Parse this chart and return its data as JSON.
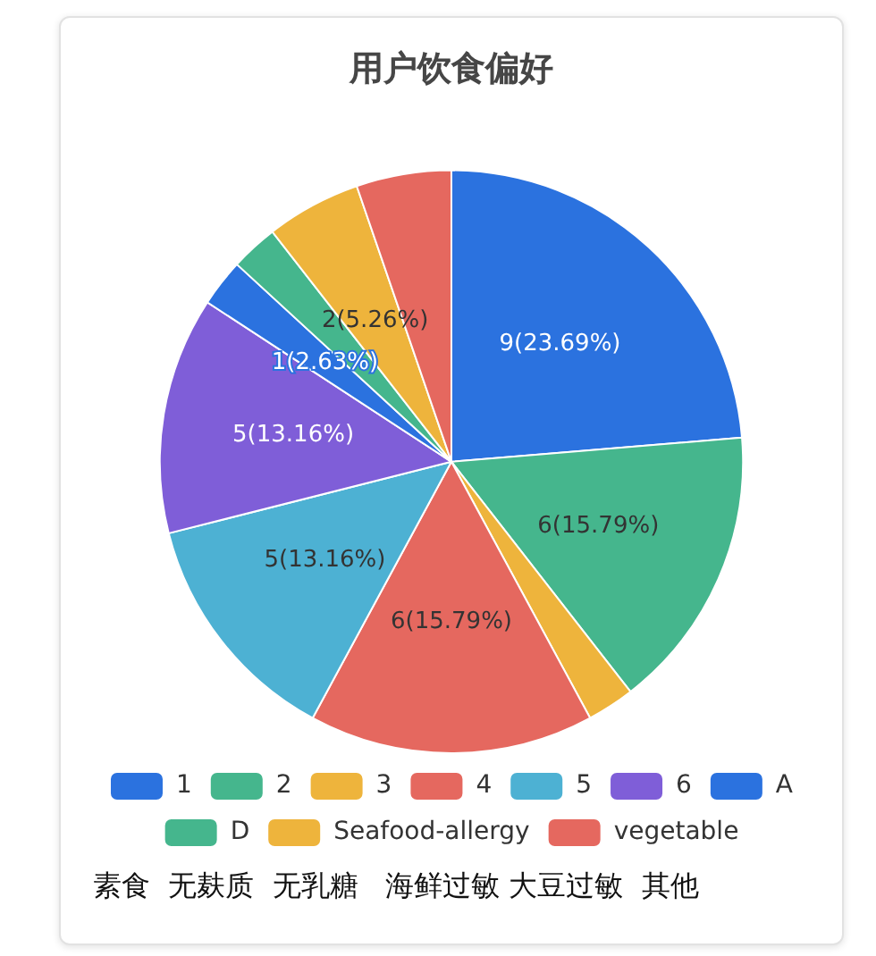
{
  "chart_data": {
    "type": "pie",
    "title": "用户饮食偏好",
    "categories": [
      "1",
      "2",
      "3",
      "4",
      "5",
      "6",
      "A",
      "D",
      "Seafood-allergy",
      "vegetable"
    ],
    "values": [
      9,
      6,
      1,
      6,
      5,
      5,
      1,
      1,
      2,
      2
    ],
    "colors": [
      "#2b72df",
      "#45b68d",
      "#eeb43c",
      "#e5685f",
      "#4db1d3",
      "#7f5ed8",
      "#2b72df",
      "#45b68d",
      "#eeb43c",
      "#e5685f"
    ],
    "value_labels": [
      "9(23.69%)",
      "6(15.79%)",
      null,
      "6(15.79%)",
      "5(13.16%)",
      "5(13.16%)",
      "1(2.63%)",
      null,
      "2(5.26%)",
      null
    ],
    "legend": "bottom",
    "annotations": [
      "素食  无麸质  无乳糖   海鲜过敏 大豆过敏  其他"
    ]
  }
}
